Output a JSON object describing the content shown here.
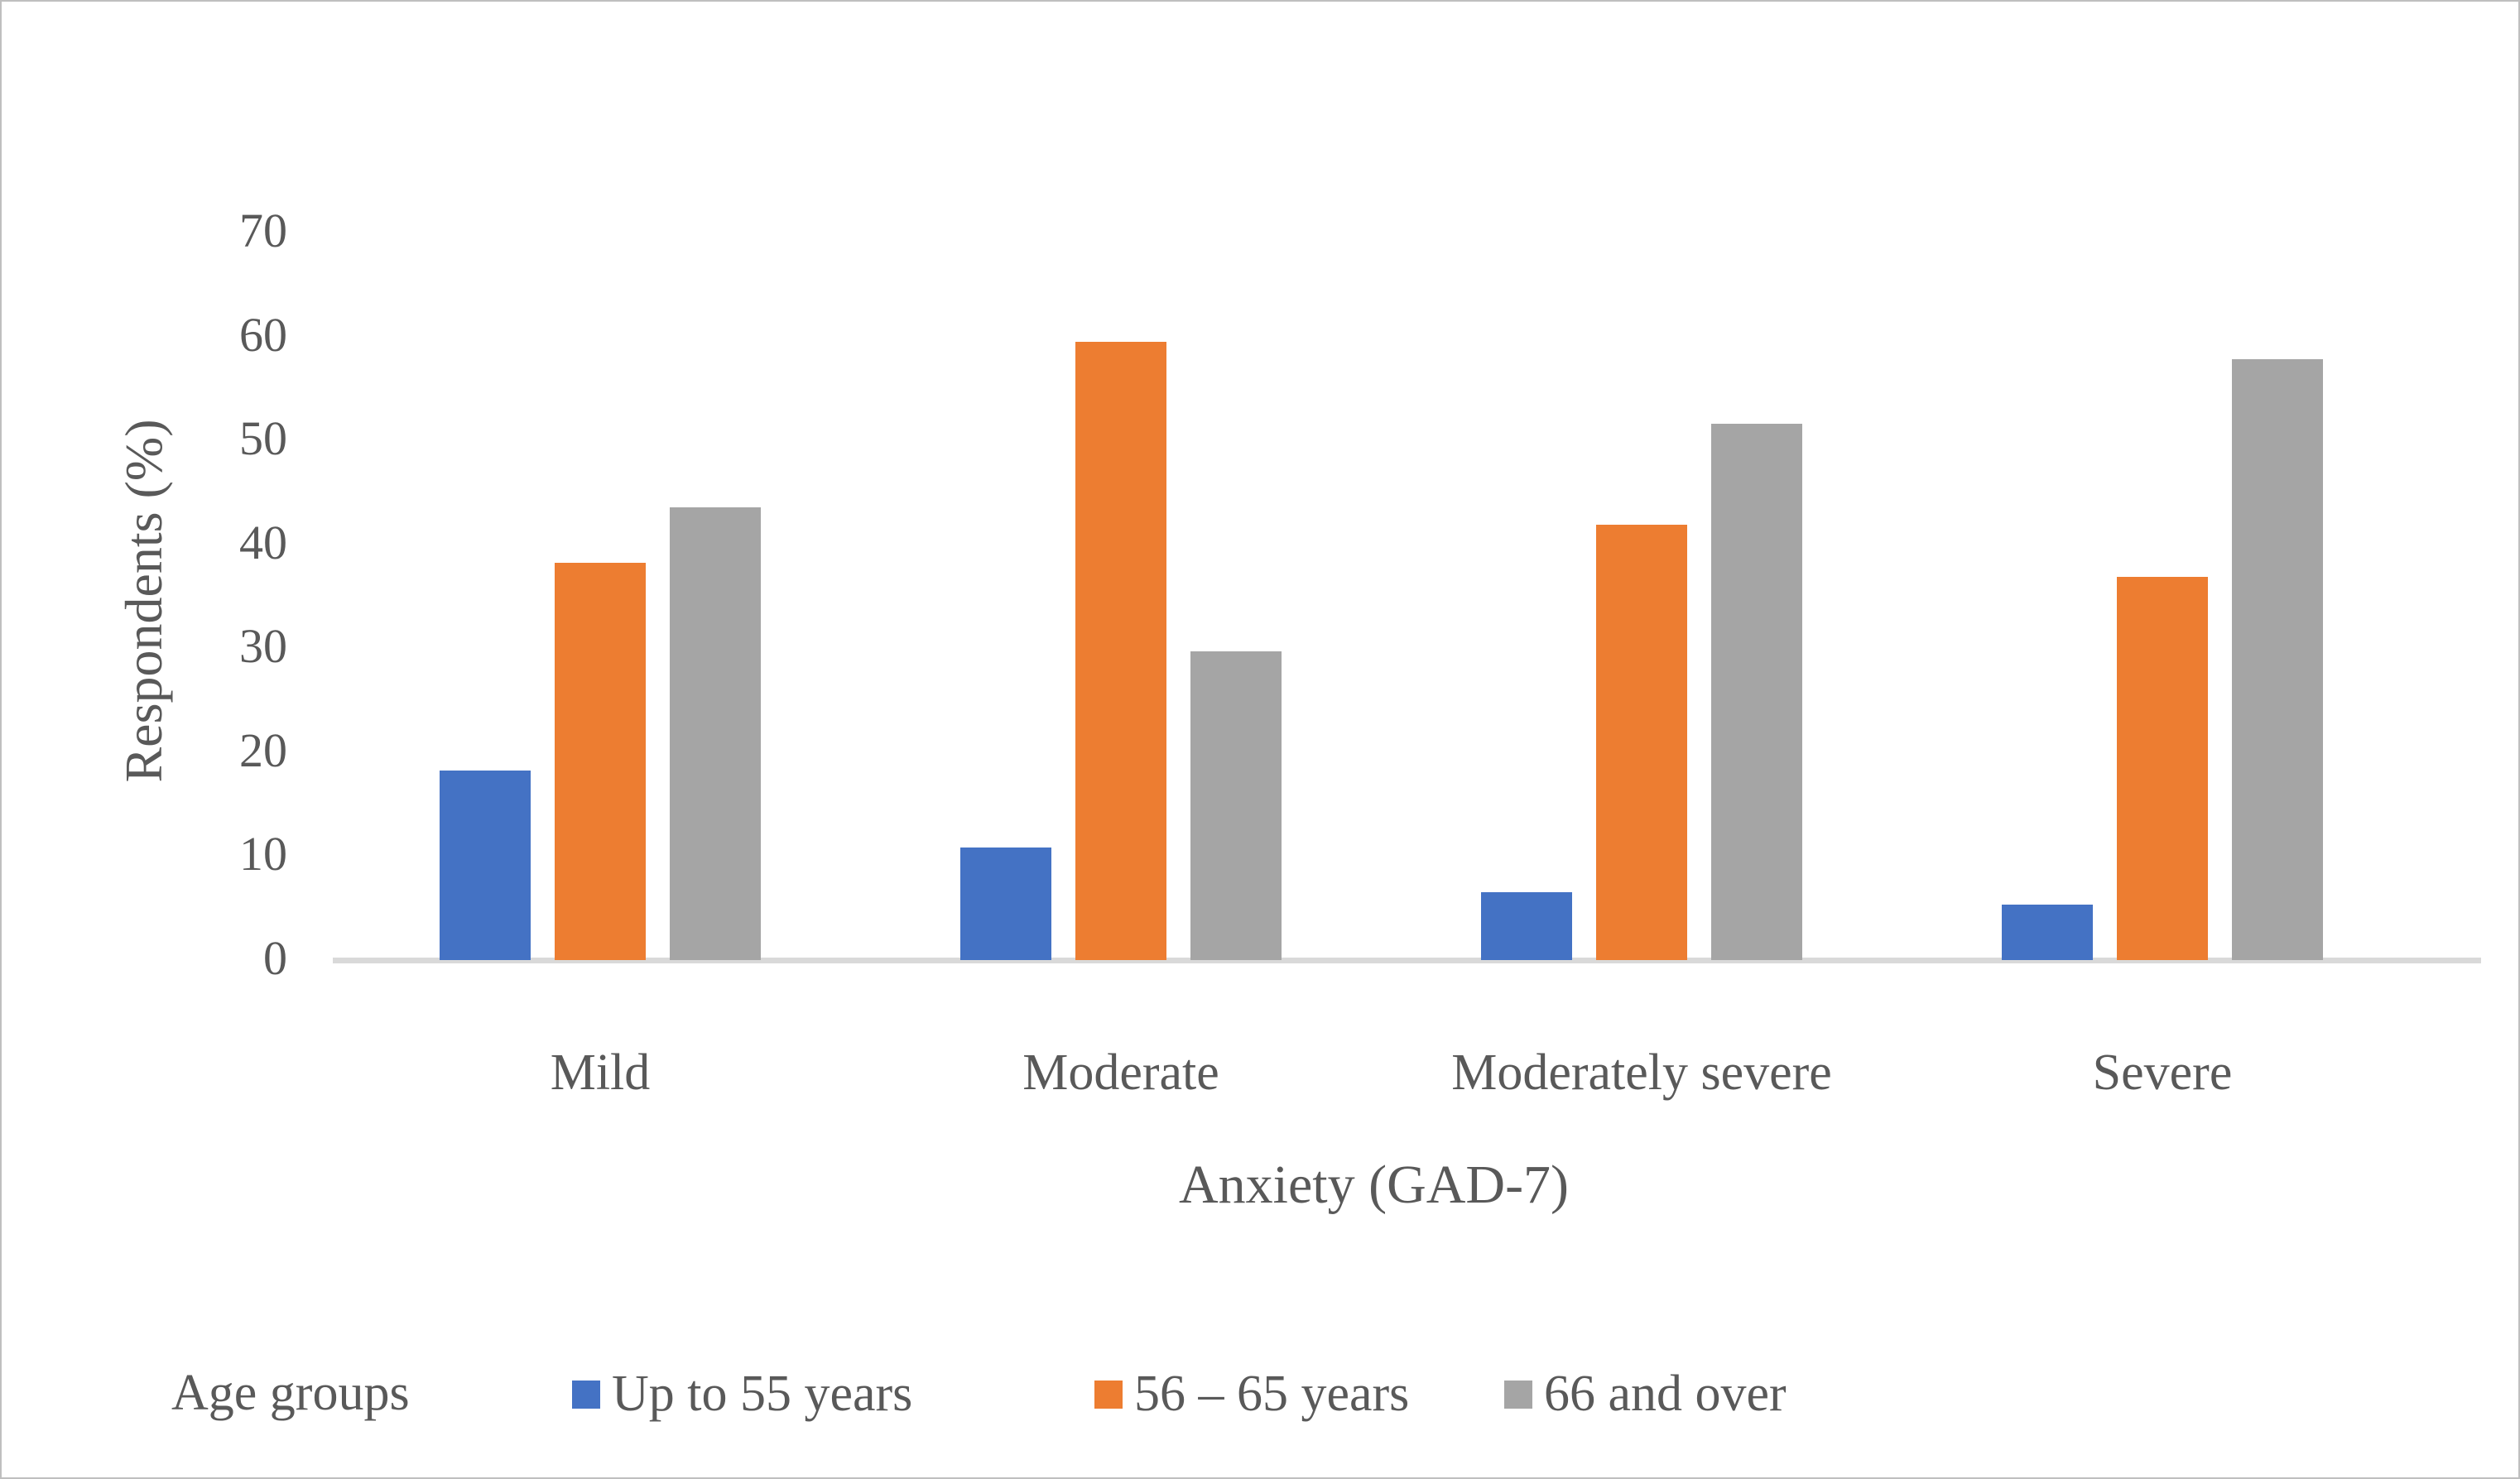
{
  "chart_data": {
    "type": "bar",
    "title": "",
    "categories": [
      "Mild",
      "Moderate",
      "Moderately severe",
      "Severe"
    ],
    "series": [
      {
        "name": "Up to 55 years",
        "color": "#4472C4",
        "values": [
          18.2,
          10.8,
          6.5,
          5.3
        ]
      },
      {
        "name": "56 – 65 years",
        "color": "#ED7D31",
        "values": [
          38.2,
          59.5,
          41.9,
          36.9
        ]
      },
      {
        "name": "66 and over",
        "color": "#A5A5A5",
        "values": [
          43.6,
          29.7,
          51.6,
          57.8
        ]
      }
    ],
    "xlabel": "Anxiety (GAD-7)",
    "ylabel": "Respondents (%)",
    "ylim": [
      0,
      70
    ],
    "yticks": [
      0,
      10,
      20,
      30,
      40,
      50,
      60,
      70
    ],
    "grid": false,
    "legend_title": "Age groups",
    "legend_position": "bottom"
  },
  "colors": {
    "axis_line": "#D9D9D9",
    "text": "#595959",
    "background": "#FFFFFF",
    "frame_border": "#BFBFBF"
  }
}
